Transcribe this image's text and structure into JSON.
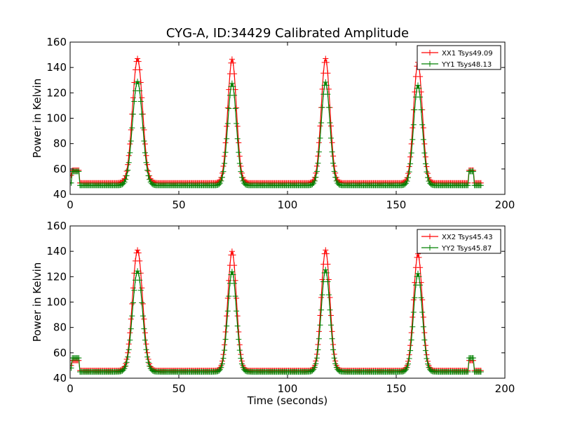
{
  "chart_data": [
    {
      "type": "line",
      "title": "CYG-A, ID:34429 Calibrated Amplitude",
      "xlabel": "",
      "ylabel": "Power in Kelvin",
      "xlim": [
        0,
        200
      ],
      "ylim": [
        40,
        160
      ],
      "xticks": [
        0,
        50,
        100,
        150,
        200
      ],
      "yticks": [
        40,
        60,
        80,
        100,
        120,
        140,
        160
      ],
      "grid": false,
      "legend_position": "top-right",
      "series": [
        {
          "name": "XX1 Tsys49.09",
          "color": "#ff0000",
          "marker": "+",
          "baseline": 49,
          "peaks": [
            {
              "x": 31,
              "y": 147,
              "width": 2.3
            },
            {
              "x": 74.5,
              "y": 146.5,
              "width": 2.0
            },
            {
              "x": 117.5,
              "y": 147,
              "width": 2.0
            },
            {
              "x": 160,
              "y": 144,
              "width": 2.0
            }
          ],
          "segments": [
            {
              "x": [
                0,
                0.5
              ],
              "y": 55
            },
            {
              "x": [
                1,
                4
              ],
              "y": 59
            },
            {
              "x": [
                183.5,
                185.5
              ],
              "y": 59
            }
          ]
        },
        {
          "name": "YY1 Tsys48.13",
          "color": "#008000",
          "marker": "+",
          "baseline": 47,
          "peaks": [
            {
              "x": 31,
              "y": 129,
              "width": 2.3
            },
            {
              "x": 74.5,
              "y": 127.5,
              "width": 2.0
            },
            {
              "x": 117.5,
              "y": 128.5,
              "width": 2.0
            },
            {
              "x": 160,
              "y": 126,
              "width": 2.0
            }
          ],
          "segments": [
            {
              "x": [
                0,
                0.5
              ],
              "y": 49
            },
            {
              "x": [
                1,
                4
              ],
              "y": 58
            },
            {
              "x": [
                183.5,
                185.5
              ],
              "y": 58
            }
          ]
        }
      ]
    },
    {
      "type": "line",
      "title": "",
      "xlabel": "Time (seconds)",
      "ylabel": "Power in Kelvin",
      "xlim": [
        0,
        200
      ],
      "ylim": [
        40,
        160
      ],
      "xticks": [
        0,
        50,
        100,
        150,
        200
      ],
      "yticks": [
        40,
        60,
        80,
        100,
        120,
        140,
        160
      ],
      "grid": false,
      "legend_position": "top-right",
      "series": [
        {
          "name": "XX2 Tsys45.43",
          "color": "#ff0000",
          "marker": "+",
          "baseline": 46,
          "peaks": [
            {
              "x": 31,
              "y": 141,
              "width": 2.3
            },
            {
              "x": 74.5,
              "y": 140,
              "width": 2.0
            },
            {
              "x": 117.5,
              "y": 141,
              "width": 2.0
            },
            {
              "x": 160,
              "y": 138,
              "width": 2.0
            }
          ],
          "segments": [
            {
              "x": [
                0,
                0.5
              ],
              "y": 50
            },
            {
              "x": [
                1,
                4
              ],
              "y": 54
            },
            {
              "x": [
                183.5,
                185.5
              ],
              "y": 54
            }
          ]
        },
        {
          "name": "YY2 Tsys45.87",
          "color": "#008000",
          "marker": "+",
          "baseline": 45,
          "peaks": [
            {
              "x": 31,
              "y": 124.5,
              "width": 2.3
            },
            {
              "x": 74.5,
              "y": 124,
              "width": 2.0
            },
            {
              "x": 117.5,
              "y": 125.5,
              "width": 2.0
            },
            {
              "x": 160,
              "y": 122.5,
              "width": 2.0
            }
          ],
          "segments": [
            {
              "x": [
                0,
                0.5
              ],
              "y": 48
            },
            {
              "x": [
                1,
                4
              ],
              "y": 56
            },
            {
              "x": [
                183.5,
                185.5
              ],
              "y": 56
            }
          ]
        }
      ]
    }
  ]
}
